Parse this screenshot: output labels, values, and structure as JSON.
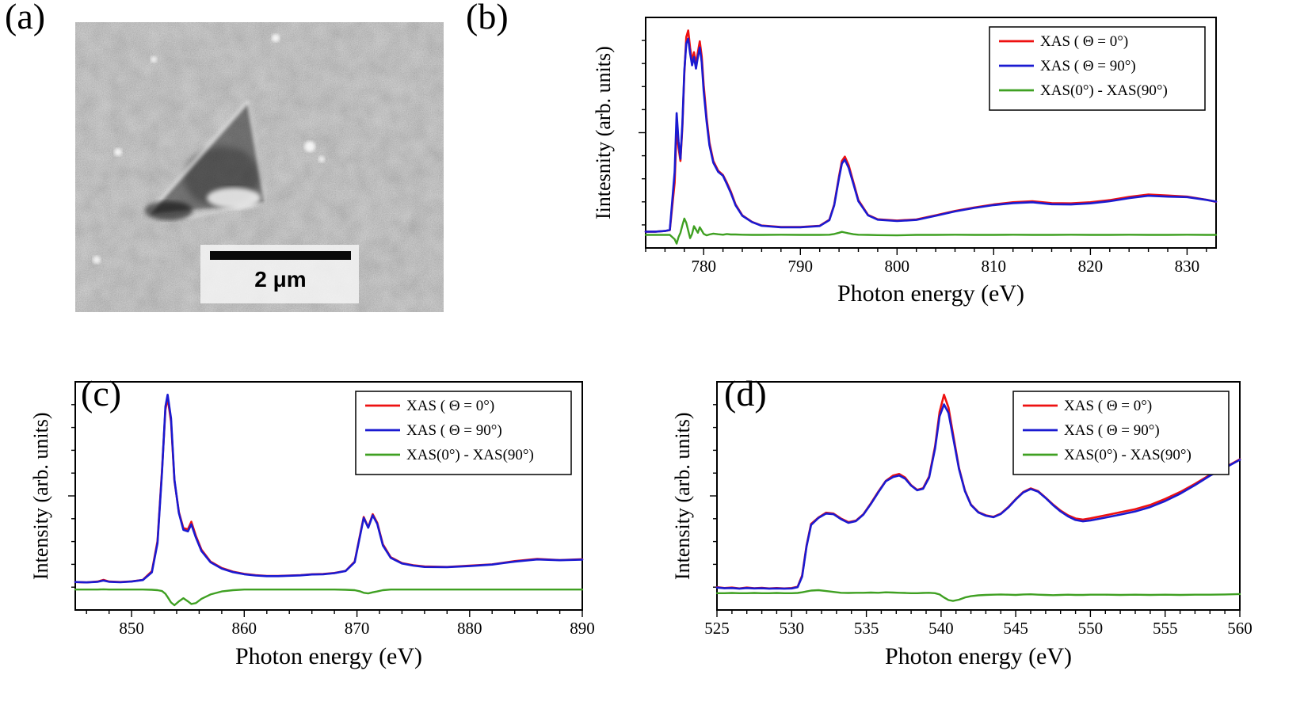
{
  "panels": {
    "a": {
      "label": "(a)",
      "scale_bar_label": "2 μm"
    },
    "b": {
      "label": "(b)"
    },
    "c": {
      "label": "(c)"
    },
    "d": {
      "label": "(d)"
    }
  },
  "chart_data": [
    {
      "panel": "b",
      "type": "line",
      "title": "",
      "xlabel": "Photon energy (eV)",
      "ylabel": "Iintesnity (arb. units)",
      "xlim": [
        774,
        833
      ],
      "ylim": [
        0,
        1.06
      ],
      "xticks": [
        780,
        790,
        800,
        810,
        820,
        830
      ],
      "xminor_step": 2,
      "grid": false,
      "legend_position": "top-right",
      "x": [
        774,
        775,
        776,
        776.5,
        777,
        777.2,
        777.4,
        777.6,
        777.8,
        778,
        778.2,
        778.4,
        778.6,
        778.8,
        779,
        779.2,
        779.4,
        779.6,
        779.8,
        780,
        780.3,
        780.6,
        781,
        781.5,
        782,
        782.4,
        782.8,
        783.3,
        784,
        785,
        786,
        788,
        790,
        792,
        793,
        793.5,
        794,
        794.3,
        794.6,
        795,
        795.5,
        796,
        797,
        798,
        800,
        802,
        804,
        806,
        808,
        810,
        812,
        814,
        816,
        818,
        820,
        822,
        824,
        826,
        828,
        830,
        832,
        833
      ],
      "series": [
        {
          "label": "XAS ( Θ = 0°)",
          "color": "#ee1111",
          "values": [
            0.075,
            0.075,
            0.078,
            0.082,
            0.3,
            0.55,
            0.46,
            0.4,
            0.56,
            0.8,
            0.97,
            1.0,
            0.92,
            0.86,
            0.9,
            0.845,
            0.9,
            0.95,
            0.88,
            0.75,
            0.6,
            0.485,
            0.4,
            0.355,
            0.335,
            0.3,
            0.26,
            0.2,
            0.15,
            0.12,
            0.103,
            0.096,
            0.096,
            0.102,
            0.13,
            0.2,
            0.33,
            0.4,
            0.42,
            0.38,
            0.3,
            0.22,
            0.152,
            0.132,
            0.126,
            0.131,
            0.15,
            0.17,
            0.186,
            0.2,
            0.21,
            0.215,
            0.206,
            0.205,
            0.21,
            0.22,
            0.235,
            0.246,
            0.241,
            0.236,
            0.222,
            0.212
          ]
        },
        {
          "label": "XAS ( Θ = 90°)",
          "color": "#1a1ad1",
          "values": [
            0.075,
            0.075,
            0.078,
            0.083,
            0.35,
            0.62,
            0.49,
            0.41,
            0.575,
            0.815,
            0.94,
            0.962,
            0.895,
            0.84,
            0.878,
            0.825,
            0.878,
            0.922,
            0.853,
            0.723,
            0.582,
            0.472,
            0.392,
            0.35,
            0.332,
            0.294,
            0.254,
            0.196,
            0.148,
            0.119,
            0.102,
            0.095,
            0.095,
            0.101,
            0.128,
            0.196,
            0.322,
            0.388,
            0.406,
            0.368,
            0.292,
            0.215,
            0.15,
            0.13,
            0.124,
            0.129,
            0.148,
            0.168,
            0.184,
            0.197,
            0.206,
            0.21,
            0.201,
            0.2,
            0.205,
            0.215,
            0.229,
            0.24,
            0.236,
            0.234,
            0.221,
            0.213
          ]
        },
        {
          "label": "XAS(0°) - XAS(90°)",
          "color": "#3fa022",
          "values": [
            0.06,
            0.06,
            0.06,
            0.06,
            0.04,
            0.02,
            0.05,
            0.07,
            0.105,
            0.135,
            0.115,
            0.08,
            0.045,
            0.065,
            0.1,
            0.085,
            0.07,
            0.095,
            0.08,
            0.065,
            0.058,
            0.062,
            0.066,
            0.063,
            0.061,
            0.064,
            0.062,
            0.062,
            0.061,
            0.06,
            0.06,
            0.061,
            0.06,
            0.06,
            0.061,
            0.064,
            0.07,
            0.074,
            0.071,
            0.067,
            0.063,
            0.061,
            0.06,
            0.059,
            0.058,
            0.06,
            0.06,
            0.061,
            0.06,
            0.06,
            0.061,
            0.06,
            0.06,
            0.061,
            0.06,
            0.06,
            0.061,
            0.06,
            0.06,
            0.061,
            0.06,
            0.06
          ]
        }
      ]
    },
    {
      "panel": "c",
      "type": "line",
      "title": "",
      "xlabel": "Photon energy (eV)",
      "ylabel": "Intensity (arb. units)",
      "xlim": [
        845,
        890
      ],
      "ylim": [
        0,
        1.06
      ],
      "xticks": [
        850,
        860,
        870,
        880,
        890
      ],
      "xminor_step": 2,
      "grid": false,
      "legend_position": "top-right",
      "x": [
        845,
        846,
        847,
        847.5,
        848,
        849,
        850,
        851,
        851.8,
        852.3,
        852.7,
        853,
        853.2,
        853.5,
        853.8,
        854.2,
        854.6,
        855,
        855.3,
        855.7,
        856.2,
        857,
        858,
        859,
        860,
        861,
        862,
        863,
        864,
        865,
        866,
        867,
        868,
        869,
        869.8,
        870.3,
        870.6,
        871,
        871.4,
        871.8,
        872.3,
        873,
        874,
        875,
        876,
        878,
        880,
        882,
        884,
        886,
        888,
        890
      ],
      "series": [
        {
          "label": "XAS ( Θ = 0°)",
          "color": "#ee1111",
          "values": [
            0.13,
            0.128,
            0.132,
            0.14,
            0.132,
            0.13,
            0.133,
            0.14,
            0.18,
            0.32,
            0.65,
            0.93,
            0.985,
            0.875,
            0.6,
            0.455,
            0.38,
            0.375,
            0.41,
            0.345,
            0.28,
            0.225,
            0.195,
            0.178,
            0.168,
            0.162,
            0.158,
            0.158,
            0.16,
            0.162,
            0.166,
            0.167,
            0.172,
            0.182,
            0.225,
            0.355,
            0.432,
            0.385,
            0.445,
            0.405,
            0.305,
            0.245,
            0.218,
            0.208,
            0.202,
            0.2,
            0.206,
            0.212,
            0.227,
            0.237,
            0.232,
            0.236
          ]
        },
        {
          "label": "XAS ( Θ = 90°)",
          "color": "#1a1ad1",
          "values": [
            0.13,
            0.128,
            0.131,
            0.137,
            0.131,
            0.129,
            0.132,
            0.139,
            0.175,
            0.31,
            0.64,
            0.945,
            1.0,
            0.89,
            0.605,
            0.45,
            0.372,
            0.365,
            0.398,
            0.337,
            0.274,
            0.222,
            0.192,
            0.176,
            0.166,
            0.16,
            0.157,
            0.157,
            0.159,
            0.161,
            0.165,
            0.166,
            0.171,
            0.181,
            0.222,
            0.35,
            0.428,
            0.382,
            0.44,
            0.4,
            0.3,
            0.242,
            0.216,
            0.206,
            0.2,
            0.199,
            0.204,
            0.211,
            0.225,
            0.235,
            0.231,
            0.234
          ]
        },
        {
          "label": "XAS(0°) - XAS(90°)",
          "color": "#3fa022",
          "values": [
            0.095,
            0.095,
            0.095,
            0.096,
            0.095,
            0.095,
            0.095,
            0.095,
            0.094,
            0.092,
            0.088,
            0.075,
            0.06,
            0.035,
            0.022,
            0.04,
            0.055,
            0.04,
            0.028,
            0.032,
            0.052,
            0.072,
            0.086,
            0.092,
            0.095,
            0.095,
            0.095,
            0.095,
            0.095,
            0.095,
            0.095,
            0.095,
            0.095,
            0.094,
            0.092,
            0.086,
            0.08,
            0.077,
            0.082,
            0.086,
            0.092,
            0.095,
            0.095,
            0.095,
            0.095,
            0.095,
            0.095,
            0.095,
            0.095,
            0.095,
            0.095,
            0.095
          ]
        }
      ]
    },
    {
      "panel": "d",
      "type": "line",
      "title": "",
      "xlabel": "Photon energy (eV)",
      "ylabel": "Intensity (arb. units)",
      "xlim": [
        525,
        560
      ],
      "ylim": [
        0,
        1.06
      ],
      "xticks": [
        525,
        530,
        535,
        540,
        545,
        550,
        555,
        560
      ],
      "xminor_step": 1,
      "grid": false,
      "legend_position": "top-right",
      "x": [
        525,
        525.5,
        526,
        526.5,
        527,
        527.5,
        528,
        528.5,
        529,
        529.5,
        530,
        530.4,
        530.7,
        531,
        531.3,
        531.8,
        532.3,
        532.8,
        533.3,
        533.8,
        534.3,
        534.8,
        535.3,
        535.8,
        536.3,
        536.8,
        537.2,
        537.6,
        538,
        538.4,
        538.8,
        539.2,
        539.6,
        539.9,
        540.2,
        540.5,
        540.8,
        541.2,
        541.6,
        542,
        542.5,
        543,
        543.5,
        544,
        544.5,
        545,
        545.5,
        546,
        546.5,
        547,
        547.5,
        548,
        548.5,
        549,
        549.5,
        550,
        551,
        552,
        553,
        554,
        555,
        556,
        557,
        558,
        559,
        560
      ],
      "series": [
        {
          "label": "XAS ( Θ = 0°)",
          "color": "#ee1111",
          "values": [
            0.106,
            0.102,
            0.104,
            0.1,
            0.104,
            0.101,
            0.103,
            0.1,
            0.102,
            0.1,
            0.102,
            0.108,
            0.16,
            0.3,
            0.4,
            0.43,
            0.452,
            0.448,
            0.425,
            0.408,
            0.415,
            0.445,
            0.495,
            0.55,
            0.6,
            0.625,
            0.632,
            0.615,
            0.58,
            0.558,
            0.566,
            0.62,
            0.76,
            0.92,
            1.0,
            0.94,
            0.82,
            0.66,
            0.555,
            0.49,
            0.455,
            0.44,
            0.433,
            0.448,
            0.478,
            0.515,
            0.548,
            0.565,
            0.552,
            0.522,
            0.49,
            0.462,
            0.44,
            0.425,
            0.42,
            0.426,
            0.44,
            0.454,
            0.468,
            0.488,
            0.516,
            0.548,
            0.586,
            0.628,
            0.662,
            0.7
          ]
        },
        {
          "label": "XAS ( Θ = 90°)",
          "color": "#1a1ad1",
          "values": [
            0.104,
            0.101,
            0.102,
            0.099,
            0.102,
            0.1,
            0.101,
            0.099,
            0.1,
            0.099,
            0.1,
            0.106,
            0.155,
            0.295,
            0.395,
            0.428,
            0.448,
            0.445,
            0.422,
            0.405,
            0.413,
            0.443,
            0.492,
            0.547,
            0.598,
            0.618,
            0.625,
            0.61,
            0.578,
            0.556,
            0.563,
            0.615,
            0.75,
            0.9,
            0.955,
            0.915,
            0.805,
            0.655,
            0.552,
            0.488,
            0.453,
            0.438,
            0.431,
            0.446,
            0.476,
            0.513,
            0.546,
            0.562,
            0.55,
            0.52,
            0.487,
            0.458,
            0.435,
            0.418,
            0.412,
            0.416,
            0.429,
            0.443,
            0.458,
            0.478,
            0.506,
            0.54,
            0.58,
            0.624,
            0.66,
            0.698
          ]
        },
        {
          "label": "XAS(0°) - XAS(90°)",
          "color": "#3fa022",
          "values": [
            0.078,
            0.078,
            0.079,
            0.078,
            0.078,
            0.079,
            0.078,
            0.078,
            0.079,
            0.078,
            0.078,
            0.079,
            0.082,
            0.086,
            0.09,
            0.092,
            0.088,
            0.084,
            0.08,
            0.079,
            0.08,
            0.08,
            0.081,
            0.08,
            0.082,
            0.081,
            0.08,
            0.079,
            0.078,
            0.078,
            0.079,
            0.08,
            0.078,
            0.072,
            0.058,
            0.046,
            0.042,
            0.048,
            0.058,
            0.064,
            0.068,
            0.07,
            0.071,
            0.072,
            0.071,
            0.07,
            0.072,
            0.073,
            0.071,
            0.07,
            0.069,
            0.07,
            0.071,
            0.07,
            0.07,
            0.071,
            0.071,
            0.07,
            0.071,
            0.07,
            0.071,
            0.07,
            0.071,
            0.071,
            0.072,
            0.074
          ]
        }
      ]
    }
  ]
}
